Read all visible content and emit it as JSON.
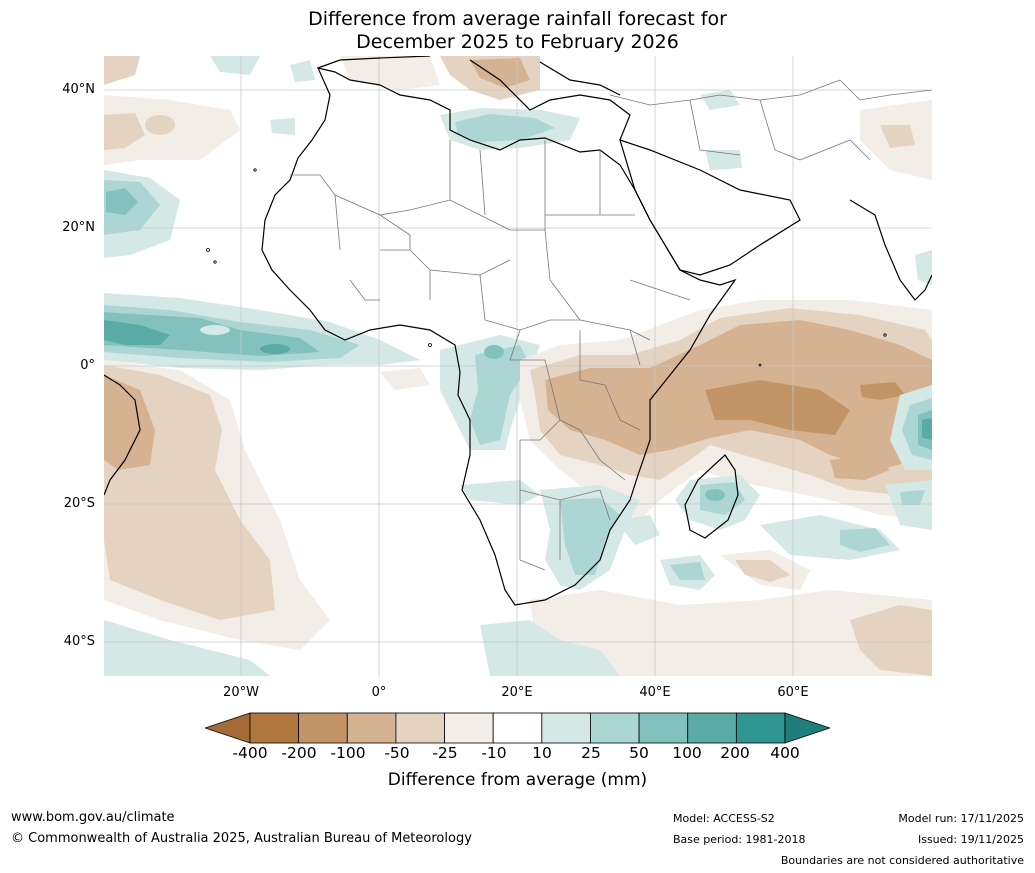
{
  "title": {
    "line1": "Difference from average rainfall forecast for",
    "line2": "December 2025 to February 2026"
  },
  "axes": {
    "lat_labels": [
      "40°N",
      "20°N",
      "0°",
      "20°S",
      "40°S"
    ],
    "lon_labels": [
      "20°W",
      "0°",
      "20°E",
      "40°E",
      "60°E"
    ]
  },
  "legend": {
    "ticks": [
      "-400",
      "-200",
      "-100",
      "-50",
      "-25",
      "-10",
      "10",
      "25",
      "50",
      "100",
      "200",
      "400"
    ],
    "colors": [
      "#a36b37",
      "#b0773f",
      "#c39467",
      "#d5b291",
      "#e5d3c1",
      "#f2ede7",
      "#ffffff",
      "#d4e8e6",
      "#abd6d3",
      "#83c1bd",
      "#5aaaa5",
      "#2f9590",
      "#1f7e79"
    ],
    "label": "Difference from average (mm)"
  },
  "footer": {
    "website": "www.bom.gov.au/climate",
    "copyright": "© Commonwealth of Australia 2025, Australian Bureau of Meteorology",
    "model": "Model: ACCESS-S2",
    "base_period": "Base period: 1981-2018",
    "model_run": "Model run: 17/11/2025",
    "issued": "Issued: 19/11/2025",
    "disclaimer": "Boundaries are not considered authoritative"
  },
  "palette": {
    "dry_dark": "#c39467",
    "dry_mid": "#d5b291",
    "dry_light": "#e5d3c1",
    "dry_faint": "#f2ede7",
    "wet_faint": "#d4e8e6",
    "wet_light": "#abd6d3",
    "wet_mid": "#83c1bd",
    "wet_dark": "#5aaaa5",
    "wet_deep": "#2f9590"
  }
}
